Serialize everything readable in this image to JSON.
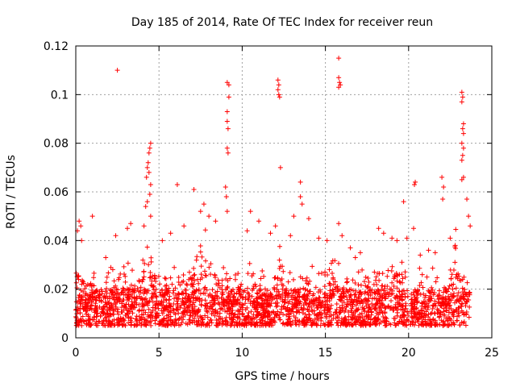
{
  "chart_data": {
    "type": "scatter",
    "title": "Day 185 of 2014, Rate Of TEC Index for receiver reun",
    "xlabel": "GPS time / hours",
    "ylabel": "ROTI / TECUs",
    "xlim": [
      0,
      25
    ],
    "ylim": [
      0,
      0.12
    ],
    "xticks": [
      0,
      5,
      10,
      15,
      20,
      25
    ],
    "yticks": [
      0,
      0.02,
      0.04,
      0.06,
      0.08,
      0.1,
      0.12
    ],
    "ytick_labels": [
      "0",
      "0.02",
      "0.04",
      "0.06",
      "0.08",
      "0.1",
      "0.12"
    ],
    "grid": true,
    "marker": "+",
    "series": [
      {
        "name": "ROTI",
        "color": "#ff0000",
        "x_range": [
          0,
          23.7
        ],
        "data_gap_hours": [
          20.0,
          20.1
        ],
        "points": [
          [
            2.5,
            0.11
          ],
          [
            15.8,
            0.115
          ],
          [
            9.1,
            0.105
          ],
          [
            9.2,
            0.104
          ],
          [
            9.2,
            0.099
          ],
          [
            9.1,
            0.093
          ],
          [
            9.1,
            0.089
          ],
          [
            9.15,
            0.086
          ],
          [
            9.1,
            0.078
          ],
          [
            9.15,
            0.076
          ],
          [
            12.15,
            0.106
          ],
          [
            12.2,
            0.104
          ],
          [
            12.15,
            0.102
          ],
          [
            12.2,
            0.1
          ],
          [
            12.25,
            0.099
          ],
          [
            15.8,
            0.107
          ],
          [
            15.85,
            0.105
          ],
          [
            15.9,
            0.104
          ],
          [
            15.8,
            0.103
          ],
          [
            12.3,
            0.07
          ],
          [
            6.1,
            0.063
          ],
          [
            13.5,
            0.064
          ],
          [
            20.4,
            0.064
          ],
          [
            20.35,
            0.063
          ],
          [
            23.2,
            0.101
          ],
          [
            23.25,
            0.099
          ],
          [
            23.2,
            0.097
          ],
          [
            23.3,
            0.088
          ],
          [
            23.25,
            0.086
          ],
          [
            23.3,
            0.084
          ],
          [
            23.2,
            0.08
          ],
          [
            23.3,
            0.078
          ],
          [
            23.25,
            0.075
          ],
          [
            23.2,
            0.073
          ],
          [
            23.3,
            0.066
          ],
          [
            23.2,
            0.065
          ],
          [
            22.0,
            0.066
          ],
          [
            22.1,
            0.062
          ],
          [
            22.05,
            0.057
          ],
          [
            4.5,
            0.08
          ],
          [
            4.45,
            0.078
          ],
          [
            4.4,
            0.076
          ],
          [
            4.35,
            0.072
          ],
          [
            4.3,
            0.07
          ],
          [
            4.4,
            0.068
          ],
          [
            4.25,
            0.066
          ],
          [
            4.5,
            0.063
          ],
          [
            4.45,
            0.059
          ],
          [
            4.3,
            0.056
          ],
          [
            4.2,
            0.054
          ],
          [
            4.5,
            0.05
          ],
          [
            4.1,
            0.046
          ],
          [
            7.1,
            0.061
          ],
          [
            7.7,
            0.055
          ],
          [
            7.5,
            0.052
          ],
          [
            8.0,
            0.05
          ],
          [
            9.0,
            0.062
          ],
          [
            9.05,
            0.058
          ],
          [
            9.1,
            0.052
          ],
          [
            10.5,
            0.052
          ],
          [
            11.0,
            0.048
          ],
          [
            13.1,
            0.05
          ],
          [
            13.5,
            0.058
          ],
          [
            13.6,
            0.055
          ],
          [
            14.0,
            0.049
          ],
          [
            15.8,
            0.047
          ],
          [
            16.5,
            0.037
          ],
          [
            18.2,
            0.045
          ],
          [
            18.5,
            0.043
          ],
          [
            19.0,
            0.041
          ],
          [
            19.3,
            0.04
          ],
          [
            19.7,
            0.056
          ],
          [
            19.9,
            0.041
          ],
          [
            21.6,
            0.035
          ],
          [
            22.5,
            0.041
          ],
          [
            23.5,
            0.057
          ],
          [
            23.6,
            0.05
          ],
          [
            23.7,
            0.046
          ],
          [
            1.0,
            0.05
          ],
          [
            0.2,
            0.048
          ],
          [
            0.3,
            0.046
          ],
          [
            0.1,
            0.044
          ],
          [
            0.35,
            0.04
          ],
          [
            3.1,
            0.045
          ],
          [
            3.3,
            0.047
          ],
          [
            2.4,
            0.042
          ],
          [
            5.2,
            0.04
          ],
          [
            5.7,
            0.043
          ],
          [
            6.5,
            0.046
          ],
          [
            8.4,
            0.048
          ],
          [
            10.3,
            0.044
          ],
          [
            11.7,
            0.043
          ],
          [
            12.0,
            0.046
          ],
          [
            12.9,
            0.042
          ],
          [
            14.6,
            0.041
          ],
          [
            15.1,
            0.04
          ],
          [
            16.0,
            0.042
          ],
          [
            17.1,
            0.035
          ],
          [
            20.3,
            0.045
          ],
          [
            20.7,
            0.034
          ],
          [
            21.2,
            0.036
          ],
          [
            22.8,
            0.038
          ],
          [
            1.8,
            0.033
          ],
          [
            16.8,
            0.033
          ]
        ]
      }
    ],
    "dense_band": {
      "baseline_low": 0.005,
      "baseline_high": 0.02,
      "description": "Dense cloud of ROTI values between roughly 0.005 and 0.02 TECU for all hours 0-23.7, with heavier activity near hours 4, 7-9, 12, 15, 18-19 and 22-23"
    }
  }
}
